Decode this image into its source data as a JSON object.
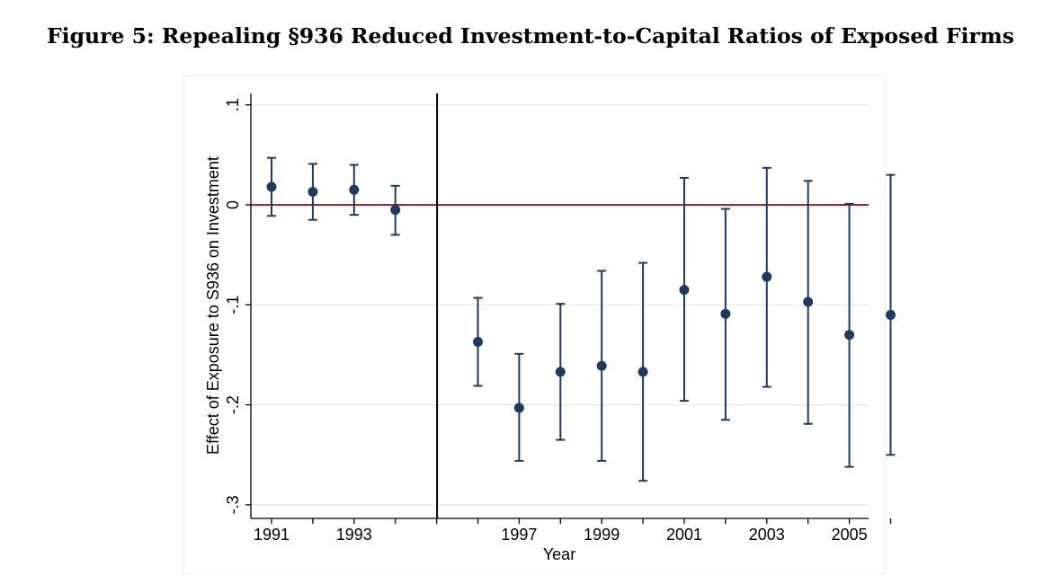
{
  "figure_title": "Figure 5: Repealing §936 Reduced Investment-to-Capital Ratios of Exposed Firms",
  "colors": {
    "marker": "#1f3a5f",
    "zero_line": "#a3232f",
    "vline": "#000000",
    "grid": "#e6e6e6",
    "plot_border": "#e8e8e8"
  },
  "chart_data": {
    "type": "scatter",
    "title": "Figure 5: Repealing §936 Reduced Investment-to-Capital Ratios of Exposed Firms",
    "xlabel": "Year",
    "ylabel": "Effect of Exposure to S936 on Investment",
    "xlim": [
      1990.5,
      2006.5
    ],
    "ylim": [
      -0.31,
      0.11
    ],
    "x_ticks": [
      1991,
      1992,
      1993,
      1994,
      1995,
      1996,
      1997,
      1998,
      1999,
      2000,
      2001,
      2002,
      2003,
      2004,
      2005,
      2006
    ],
    "x_tick_labels": {
      "1991": "1991",
      "1993": "1993",
      "1997": "1997",
      "1999": "1999",
      "2001": "2001",
      "2003": "2003",
      "2005": "2005"
    },
    "y_ticks": [
      0.1,
      0,
      -0.1,
      -0.2,
      -0.3
    ],
    "y_tick_labels": [
      ".1",
      "0",
      "-.1",
      "-.2",
      "-.3"
    ],
    "grid": true,
    "reference_hline": 0,
    "reference_vline": 1995,
    "points": [
      {
        "x": 1991,
        "y": 0.018,
        "lo": -0.011,
        "hi": 0.047
      },
      {
        "x": 1992,
        "y": 0.013,
        "lo": -0.015,
        "hi": 0.041
      },
      {
        "x": 1993,
        "y": 0.015,
        "lo": -0.01,
        "hi": 0.04
      },
      {
        "x": 1994,
        "y": -0.005,
        "lo": -0.03,
        "hi": 0.019
      },
      {
        "x": 1996,
        "y": -0.137,
        "lo": -0.181,
        "hi": -0.093
      },
      {
        "x": 1997,
        "y": -0.203,
        "lo": -0.256,
        "hi": -0.149
      },
      {
        "x": 1998,
        "y": -0.167,
        "lo": -0.235,
        "hi": -0.099
      },
      {
        "x": 1999,
        "y": -0.161,
        "lo": -0.256,
        "hi": -0.066
      },
      {
        "x": 2000,
        "y": -0.167,
        "lo": -0.276,
        "hi": -0.058
      },
      {
        "x": 2001,
        "y": -0.085,
        "lo": -0.196,
        "hi": 0.027
      },
      {
        "x": 2002,
        "y": -0.109,
        "lo": -0.215,
        "hi": -0.004
      },
      {
        "x": 2003,
        "y": -0.072,
        "lo": -0.182,
        "hi": 0.037
      },
      {
        "x": 2004,
        "y": -0.097,
        "lo": -0.219,
        "hi": 0.024
      },
      {
        "x": 2005,
        "y": -0.13,
        "lo": -0.262,
        "hi": 0.001
      },
      {
        "x": 2006,
        "y": -0.11,
        "lo": -0.25,
        "hi": 0.03
      }
    ]
  }
}
